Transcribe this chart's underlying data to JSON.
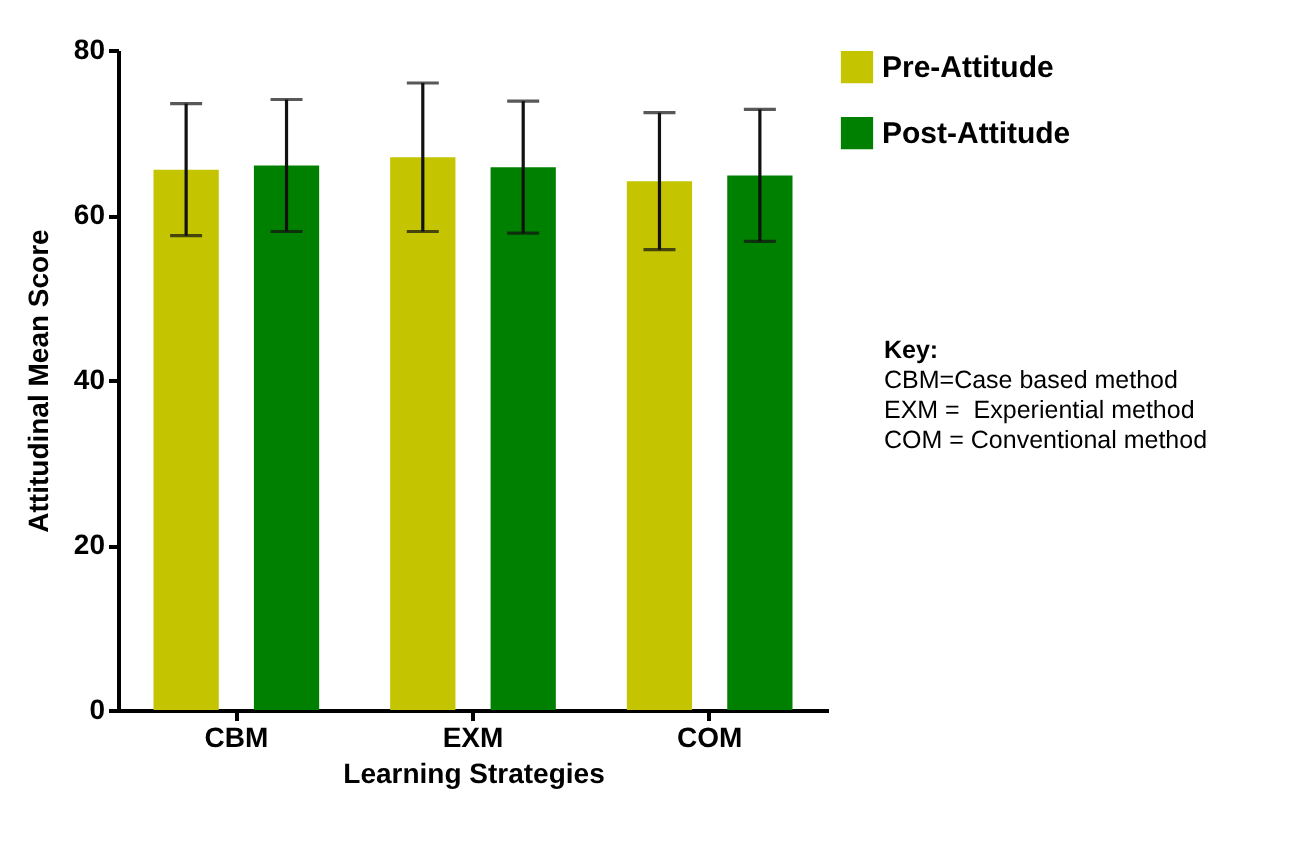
{
  "chart_data": {
    "type": "bar",
    "xlabel": "Learning Strategies",
    "ylabel": "Attitudinal Mean Score",
    "categories": [
      "CBM",
      "EXM",
      "COM"
    ],
    "series": [
      {
        "name": "Pre-Attitude",
        "color": "#c4c400",
        "values": [
          65.5,
          67,
          64.1
        ],
        "errors": [
          8,
          9,
          8.3
        ]
      },
      {
        "name": "Post-Attitude",
        "color": "#008000",
        "values": [
          66,
          65.8,
          64.8
        ],
        "errors": [
          8,
          8,
          8
        ]
      }
    ],
    "ylim": [
      0,
      80
    ],
    "yticks": [
      0,
      20,
      40,
      60,
      80
    ],
    "grid": false,
    "legend": "right",
    "annotations": [
      "Key:",
      "CBM=Case based method",
      "EXM =  Experiential method",
      "COM = Conventional method"
    ]
  }
}
